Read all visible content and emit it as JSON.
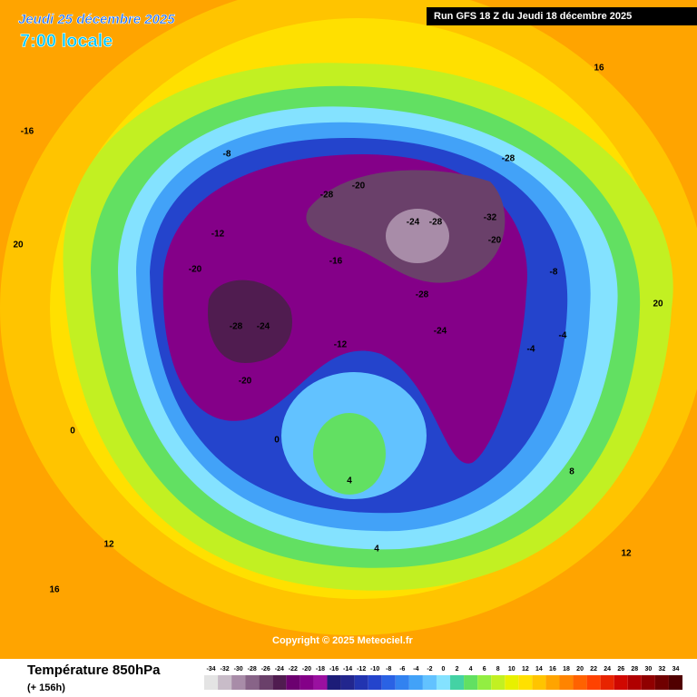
{
  "header": {
    "date": "Jeudi 25 décembre 2025",
    "time": "7:00 locale",
    "run": "Run GFS 18 Z du Jeudi 18 décembre 2025"
  },
  "map": {
    "copyright": "Copyright © 2025 Meteociel.fr",
    "labels": [
      -28,
      -24,
      -20,
      -28,
      -20,
      -24,
      -28,
      -32,
      -28,
      -20,
      -16,
      -12,
      -8,
      -4,
      0,
      4,
      8,
      12,
      16,
      20,
      -12,
      -8,
      -4,
      0,
      4,
      12,
      16,
      20,
      -24,
      -28,
      -20,
      -16
    ]
  },
  "legend": {
    "title": "Température 850hPa",
    "lead": "(+ 156h)",
    "values": [
      -34,
      -32,
      -30,
      -28,
      -26,
      -24,
      -22,
      -20,
      -18,
      -16,
      -14,
      -12,
      -10,
      -8,
      -6,
      -4,
      -2,
      0,
      2,
      4,
      6,
      8,
      10,
      12,
      14,
      16,
      18,
      20,
      22,
      24,
      26,
      28,
      30,
      32,
      34
    ],
    "colors": [
      "#e4e4e4",
      "#c8bcc8",
      "#a88ca8",
      "#886488",
      "#6a406a",
      "#501c50",
      "#6c0070",
      "#840088",
      "#9a10a0",
      "#1c1c78",
      "#22268e",
      "#2234b0",
      "#2444cc",
      "#2a62e4",
      "#3282f0",
      "#42a2f8",
      "#62c2ff",
      "#84e2ff",
      "#44d2a4",
      "#62e062",
      "#92ee42",
      "#c2f022",
      "#e8f000",
      "#ffe000",
      "#ffc400",
      "#ffa400",
      "#ff8400",
      "#ff6200",
      "#ff4200",
      "#e82400",
      "#d00800",
      "#b00000",
      "#900000",
      "#700000",
      "#500000"
    ]
  }
}
